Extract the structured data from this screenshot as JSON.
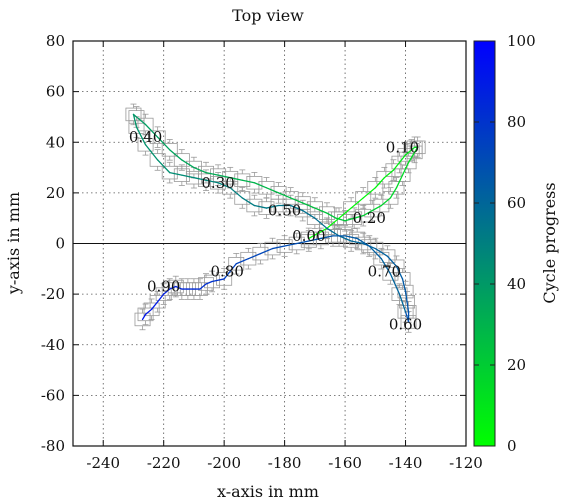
{
  "chart_data": {
    "type": "line",
    "title": "Top view",
    "xlabel": "x-axis in mm",
    "ylabel": "y-axis in mm",
    "xlim": [
      -250,
      -120
    ],
    "ylim": [
      -80,
      80
    ],
    "xticks": [
      "-240",
      "-220",
      "-200",
      "-180",
      "-160",
      "-140",
      "-120"
    ],
    "yticks": [
      "-80",
      "-60",
      "-40",
      "-20",
      "0",
      "20",
      "40",
      "60",
      "80"
    ],
    "xtick_values": [
      -240,
      -220,
      -200,
      -180,
      -160,
      -140,
      -120
    ],
    "ytick_values": [
      -80,
      -60,
      -40,
      -20,
      0,
      20,
      40,
      60,
      80
    ],
    "grid": true,
    "colorbar": {
      "label": "Cycle progress",
      "range": [
        0,
        100
      ],
      "ticks": [
        "0",
        "20",
        "40",
        "60",
        "80",
        "100"
      ],
      "tick_values": [
        0,
        20,
        40,
        60,
        80,
        100
      ],
      "color_low": "#00ff00",
      "color_high": "#0000ff"
    },
    "trajectory": {
      "x": [
        -172,
        -166,
        -162,
        -158,
        -154,
        -150,
        -147,
        -144,
        -142,
        -140,
        -138,
        -137,
        -136,
        -137,
        -139,
        -141,
        -143,
        -145,
        -148,
        -151,
        -154,
        -157,
        -160,
        -163,
        -166,
        -170,
        -174,
        -178,
        -182,
        -186,
        -190,
        -194,
        -198,
        -202,
        -206,
        -210,
        -214,
        -218,
        -222,
        -226,
        -229,
        -230,
        -229,
        -226,
        -222,
        -218,
        -214,
        -210,
        -206,
        -202,
        -198,
        -194,
        -190,
        -186,
        -182,
        -178,
        -174,
        -170,
        -166,
        -162,
        -158,
        -154,
        -150,
        -146,
        -143,
        -141,
        -140,
        -139.5,
        -139,
        -139,
        -140,
        -142,
        -145,
        -148,
        -152,
        -156,
        -160,
        -164,
        -168,
        -172,
        -176,
        -180,
        -184,
        -188,
        -192,
        -196,
        -200,
        -204,
        -206,
        -208,
        -210,
        -212,
        -214,
        -216,
        -218,
        -220,
        -222,
        -224,
        -226,
        -227
      ],
      "y": [
        2,
        6,
        10,
        14,
        18,
        22,
        26,
        29,
        32,
        35,
        37,
        38,
        38,
        36,
        32,
        27,
        22,
        18,
        15,
        13,
        11,
        10,
        9,
        10,
        12,
        14,
        16,
        18,
        20,
        22,
        24,
        25,
        26,
        27,
        28,
        30,
        33,
        37,
        42,
        47,
        50,
        51,
        46,
        39,
        33,
        28,
        27,
        26,
        25,
        24,
        22,
        18,
        15,
        14,
        15,
        15,
        13,
        10,
        6,
        3,
        1,
        0,
        -2,
        -5,
        -9,
        -14,
        -19,
        -23,
        -27,
        -31,
        -27,
        -20,
        -12,
        -6,
        -1,
        2,
        3,
        3,
        2,
        1,
        0,
        -1,
        -2,
        -4,
        -6,
        -8,
        -14,
        -15,
        -16,
        -18,
        -18,
        -18,
        -18,
        -17,
        -18,
        -20,
        -23,
        -26,
        -28,
        -30
      ],
      "progress": [
        0,
        1,
        2,
        3,
        4,
        5,
        6,
        7,
        8,
        9,
        10,
        11,
        12,
        13,
        14,
        15,
        16,
        17,
        18,
        19,
        20,
        21,
        22,
        23,
        24,
        25,
        26,
        27,
        28,
        29,
        30,
        31,
        32,
        33,
        34,
        35,
        36,
        37,
        38,
        39,
        40,
        41,
        42,
        43,
        44,
        45,
        46,
        47,
        48,
        49,
        50,
        51,
        52,
        53,
        54,
        55,
        56,
        57,
        58,
        59,
        60,
        61,
        62,
        63,
        64,
        65,
        66,
        67,
        68,
        69,
        60,
        61,
        62,
        63,
        64,
        65,
        66,
        67,
        68,
        69,
        70,
        71,
        72,
        73,
        74,
        75,
        80,
        81,
        82,
        83,
        84,
        85,
        86,
        87,
        88,
        89,
        90,
        91,
        92,
        93
      ],
      "error_mm": 2.5
    },
    "annotations": [
      {
        "text": "0.00",
        "x": -172,
        "y": 3
      },
      {
        "text": "0.10",
        "x": -141,
        "y": 38
      },
      {
        "text": "0.20",
        "x": -152,
        "y": 10
      },
      {
        "text": "0.30",
        "x": -202,
        "y": 24
      },
      {
        "text": "0.40",
        "x": -226,
        "y": 42
      },
      {
        "text": "0.50",
        "x": -180,
        "y": 13
      },
      {
        "text": "0.60",
        "x": -140,
        "y": -32
      },
      {
        "text": "0.70",
        "x": -147,
        "y": -11
      },
      {
        "text": "0.80",
        "x": -199,
        "y": -11
      },
      {
        "text": "0.90",
        "x": -220,
        "y": -17
      }
    ]
  }
}
